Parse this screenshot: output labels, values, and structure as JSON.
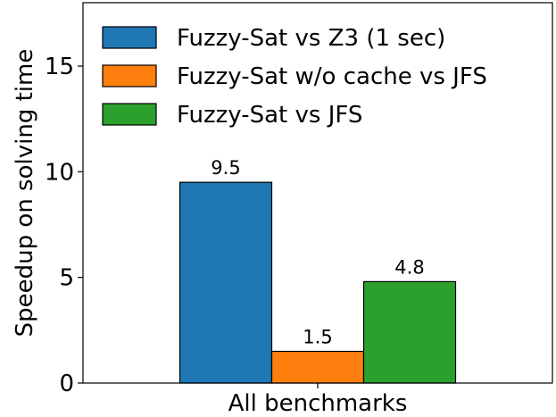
{
  "chart_data": {
    "type": "bar",
    "categories": [
      "All benchmarks"
    ],
    "series": [
      {
        "name": "Fuzzy-Sat vs Z3 (1 sec)",
        "values": [
          9.5
        ],
        "color": "#1f77b4",
        "label": "9.5"
      },
      {
        "name": "Fuzzy-Sat w/o cache vs JFS",
        "values": [
          1.5
        ],
        "color": "#ff7f0e",
        "label": "1.5"
      },
      {
        "name": "Fuzzy-Sat vs JFS",
        "values": [
          4.8
        ],
        "color": "#2ca02c",
        "label": "4.8"
      }
    ],
    "xlabel": "",
    "ylabel": "Speedup on solving time",
    "ylim": [
      0,
      18
    ],
    "yticks": [
      0,
      5,
      10,
      15
    ],
    "ytick_labels": [
      "0",
      "5",
      "10",
      "15"
    ],
    "grid": false,
    "legend_position": "top-left"
  }
}
